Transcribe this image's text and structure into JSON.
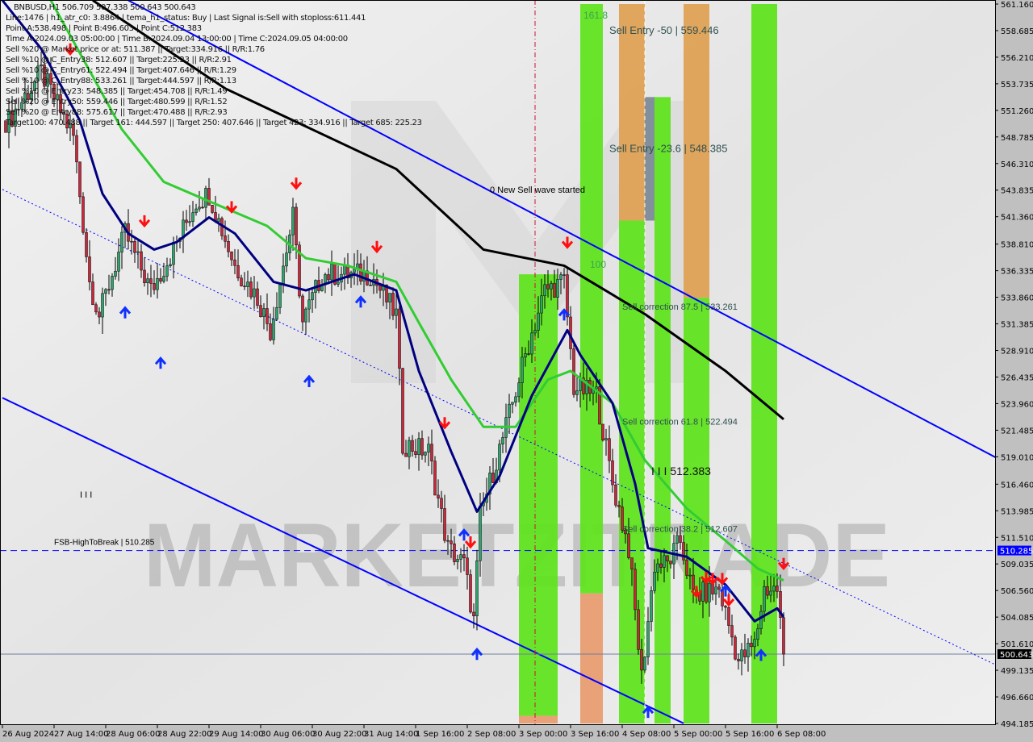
{
  "header": {
    "title": "BNBUSD,H1  506.709 507.338 500.643 500.643",
    "lines": [
      "Line:1476 | h1_atr_c0: 3.8864 | tema_h1_status: Buy | Last Signal is:Sell with stoploss:611.441",
      "Point A:538.498 | Point B:496.603 | Point C:512.383",
      "Time A:2024.09.03 05:00:00 | Time B:2024.09.04 13:00:00 | Time C:2024.09.05 04:00:00",
      "Sell %20 @ Market price or at: 511.387 || Target:334.916 || R/R:1.76",
      "Sell %10 @ C_Entry38: 512.607 || Target:225.23 || R/R:2.91",
      "Sell %10 @ C_Entry61: 522.494 || Target:407.646 || R/R:1.29",
      "Sell %10 @ C_Entry88: 533.261 || Target:444.597 || R/R:1.13",
      "Sell %10 @ Entry23: 548.385 || Target:454.708 || R/R:1.49",
      "Sell %20 @ Entry50: 559.446 || Target:480.599 || R/R:1.52",
      "Sell %20 @ Entry88: 575.617 || Target:470.488 || R/R:2.93",
      "Target100: 470.488 || Target 161: 444.597 || Target 250: 407.646 || Target 423: 334.916 || Target 685: 225.23"
    ]
  },
  "watermark": "MARKETZITRADE",
  "chart_data": {
    "type": "candlestick",
    "symbol": "BNBUSD",
    "timeframe": "H1",
    "ylim": [
      494.185,
      561.16
    ],
    "y_ticks": [
      "561.160",
      "558.685",
      "556.210",
      "553.735",
      "551.260",
      "548.785",
      "546.310",
      "543.835",
      "541.360",
      "538.810",
      "536.335",
      "533.860",
      "531.385",
      "528.910",
      "526.435",
      "523.960",
      "521.485",
      "519.010",
      "516.460",
      "513.985",
      "511.510",
      "509.035",
      "506.560",
      "504.085",
      "501.610",
      "499.135",
      "496.660",
      "494.185"
    ],
    "x_ticks": [
      {
        "label": "26 Aug 2024",
        "t": "2024-08-26 00:00"
      },
      {
        "label": "27 Aug 14:00",
        "t": "2024-08-27 14:00"
      },
      {
        "label": "28 Aug 06:00",
        "t": "2024-08-28 06:00"
      },
      {
        "label": "28 Aug 22:00",
        "t": "2024-08-28 22:00"
      },
      {
        "label": "29 Aug 14:00",
        "t": "2024-08-29 14:00"
      },
      {
        "label": "30 Aug 06:00",
        "t": "2024-08-30 06:00"
      },
      {
        "label": "30 Aug 22:00",
        "t": "2024-08-30 22:00"
      },
      {
        "label": "31 Aug 14:00",
        "t": "2024-08-31 14:00"
      },
      {
        "label": "1 Sep 16:00",
        "t": "2024-09-01 16:00"
      },
      {
        "label": "2 Sep 08:00",
        "t": "2024-09-02 08:00"
      },
      {
        "label": "3 Sep 00:00",
        "t": "2024-09-03 00:00"
      },
      {
        "label": "3 Sep 16:00",
        "t": "2024-09-03 16:00"
      },
      {
        "label": "4 Sep 08:00",
        "t": "2024-09-04 08:00"
      },
      {
        "label": "5 Sep 00:00",
        "t": "2024-09-05 00:00"
      },
      {
        "label": "5 Sep 16:00",
        "t": "2024-09-05 16:00"
      },
      {
        "label": "6 Sep 08:00",
        "t": "2024-09-06 08:00"
      }
    ],
    "close_path": [
      [
        "2024-08-26 02:00",
        550.3
      ],
      [
        "2024-08-26 12:00",
        554.8
      ],
      [
        "2024-08-27 20:00",
        548.8
      ],
      [
        "2024-08-28 01:00",
        535.3
      ],
      [
        "2024-08-28 04:00",
        532.2
      ],
      [
        "2024-08-28 12:00",
        539.8
      ],
      [
        "2024-08-28 20:00",
        534.5
      ],
      [
        "2024-08-29 03:00",
        538.3
      ],
      [
        "2024-08-29 10:00",
        542.8
      ],
      [
        "2024-08-29 14:00",
        543.5
      ],
      [
        "2024-08-29 22:00",
        536.8
      ],
      [
        "2024-08-30 05:00",
        533.8
      ],
      [
        "2024-08-30 09:00",
        530.8
      ],
      [
        "2024-08-30 16:00",
        541.3
      ],
      [
        "2024-08-30 19:00",
        531.5
      ],
      [
        "2024-08-31 01:00",
        536.0
      ],
      [
        "2024-08-31 09:00",
        536.0
      ],
      [
        "2024-08-31 16:00",
        536.0
      ],
      [
        "2024-09-01 00:00",
        532.2
      ],
      [
        "2024-09-01 02:00",
        520.2
      ],
      [
        "2024-09-01 20:00",
        519.5
      ],
      [
        "2024-09-02 02:00",
        510.5
      ],
      [
        "2024-09-02 07:00",
        509.0
      ],
      [
        "2024-09-02 10:00",
        503.7
      ],
      [
        "2024-09-02 12:00",
        513.5
      ],
      [
        "2024-09-02 20:00",
        521.8
      ],
      [
        "2024-09-03 02:00",
        528.5
      ],
      [
        "2024-09-03 08:00",
        534.5
      ],
      [
        "2024-09-03 14:00",
        535.3
      ],
      [
        "2024-09-03 17:00",
        525.5
      ],
      [
        "2024-09-04 00:00",
        524.8
      ],
      [
        "2024-09-04 05:00",
        516.5
      ],
      [
        "2024-09-04 10:00",
        510.5
      ],
      [
        "2024-09-04 14:00",
        498.5
      ],
      [
        "2024-09-04 18:00",
        509.0
      ],
      [
        "2024-09-04 22:00",
        509.0
      ],
      [
        "2024-09-05 02:00",
        511.2
      ],
      [
        "2024-09-05 06:00",
        506.0
      ],
      [
        "2024-09-05 14:00",
        506.7
      ],
      [
        "2024-09-05 20:00",
        500.0
      ],
      [
        "2024-09-06 01:00",
        501.5
      ],
      [
        "2024-09-06 04:00",
        506.7
      ],
      [
        "2024-09-06 08:00",
        506.7
      ],
      [
        "2024-09-06 10:00",
        500.643
      ]
    ],
    "ma_lines": [
      {
        "color": "#000000",
        "points": [
          [
            "2024-08-28 02:00",
            561.5
          ],
          [
            "2024-08-29 19:00",
            553.3
          ],
          [
            "2024-09-01 00:00",
            545.8
          ],
          [
            "2024-09-02 13:00",
            538.3
          ],
          [
            "2024-09-03 14:00",
            536.8
          ],
          [
            "2024-09-04 15:00",
            532.3
          ],
          [
            "2024-09-05 16:00",
            527.0
          ],
          [
            "2024-09-06 10:00",
            522.5
          ]
        ]
      },
      {
        "color": "#33cc33",
        "points": [
          [
            "2024-08-26 15:00",
            561.5
          ],
          [
            "2024-08-28 11:00",
            549.5
          ],
          [
            "2024-08-29 00:00",
            544.6
          ],
          [
            "2024-08-29 14:00",
            542.8
          ],
          [
            "2024-08-30 08:00",
            540.5
          ],
          [
            "2024-08-30 20:00",
            537.5
          ],
          [
            "2024-08-31 09:00",
            536.8
          ],
          [
            "2024-09-01 00:00",
            535.3
          ],
          [
            "2024-09-01 17:00",
            531.5
          ],
          [
            "2024-09-02 03:00",
            526.2
          ],
          [
            "2024-09-02 13:00",
            521.8
          ],
          [
            "2024-09-02 23:00",
            521.8
          ],
          [
            "2024-09-03 09:00",
            526.2
          ],
          [
            "2024-09-03 16:00",
            527.0
          ],
          [
            "2024-09-04 05:00",
            524.0
          ],
          [
            "2024-09-04 15:00",
            518.7
          ],
          [
            "2024-09-05 04:00",
            514.2
          ],
          [
            "2024-09-05 16:00",
            511.2
          ],
          [
            "2024-09-06 02:00",
            508.6
          ],
          [
            "2024-09-06 10:00",
            507.5
          ]
        ]
      },
      {
        "color": "#000080",
        "points": [
          [
            "2024-08-26 00:00",
            561.5
          ],
          [
            "2024-08-26 12:00",
            557.0
          ],
          [
            "2024-08-27 22:00",
            550.3
          ],
          [
            "2024-08-28 05:00",
            543.5
          ],
          [
            "2024-08-28 13:00",
            539.8
          ],
          [
            "2024-08-28 21:00",
            538.3
          ],
          [
            "2024-08-29 04:00",
            539.0
          ],
          [
            "2024-08-29 14:00",
            541.3
          ],
          [
            "2024-08-29 22:00",
            539.8
          ],
          [
            "2024-08-30 10:00",
            535.3
          ],
          [
            "2024-08-30 20:00",
            534.5
          ],
          [
            "2024-08-31 11:00",
            536.0
          ],
          [
            "2024-09-01 00:00",
            534.5
          ],
          [
            "2024-09-01 17:00",
            527.0
          ],
          [
            "2024-09-02 03:00",
            519.5
          ],
          [
            "2024-09-02 11:00",
            513.9
          ],
          [
            "2024-09-02 18:00",
            517.2
          ],
          [
            "2024-09-03 04:00",
            524.7
          ],
          [
            "2024-09-03 15:00",
            530.8
          ],
          [
            "2024-09-03 19:00",
            528.5
          ],
          [
            "2024-09-04 05:00",
            524.0
          ],
          [
            "2024-09-04 12:00",
            516.5
          ],
          [
            "2024-09-04 16:00",
            510.5
          ],
          [
            "2024-09-05 04:00",
            509.7
          ],
          [
            "2024-09-05 16:00",
            507.1
          ],
          [
            "2024-09-06 01:00",
            503.7
          ],
          [
            "2024-09-06 08:00",
            504.9
          ],
          [
            "2024-09-06 10:00",
            504.1
          ]
        ]
      }
    ],
    "trend_lines": [
      {
        "style": "solid",
        "color": "#0000ff",
        "from": [
          "2024-08-28 13:00",
          561.5
        ],
        "to": [
          "2024-09-09 04:00",
          518.9
        ]
      },
      {
        "style": "solid",
        "color": "#0000ff",
        "from": [
          "2024-08-26 00:00",
          524.5
        ],
        "to": [
          "2024-09-05 03:00",
          494.2
        ]
      },
      {
        "style": "dotted",
        "color": "#0000ff",
        "from": [
          "2024-08-26 00:00",
          543.9
        ],
        "to": [
          "2024-09-09 04:00",
          499.6
        ]
      }
    ],
    "zones": [
      {
        "from": "2024-09-03 00:00",
        "to": "2024-09-03 12:00",
        "segments": [
          {
            "color": "#5ce41a",
            "top": 536.0,
            "bottom": 494.9
          },
          {
            "color": "#e89a6c",
            "top": 494.9,
            "bottom": 494.185
          }
        ]
      },
      {
        "from": "2024-09-03 19:00",
        "to": "2024-09-04 02:00",
        "segments": [
          {
            "color": "#5ce41a",
            "top": 561.16,
            "bottom": 506.3
          },
          {
            "color": "#e89a6c",
            "top": 506.3,
            "bottom": 494.185
          }
        ]
      },
      {
        "from": "2024-09-04 07:00",
        "to": "2024-09-04 15:00",
        "segments": [
          {
            "color": "#e0a050",
            "top": 561.16,
            "bottom": 541.0
          },
          {
            "color": "#5ce41a",
            "top": 541.0,
            "bottom": 494.185
          }
        ]
      },
      {
        "from": "2024-09-04 15:00",
        "to": "2024-09-04 18:00",
        "segments": [
          {
            "color": "#7a8896",
            "top": 552.5,
            "bottom": 541.0
          }
        ]
      },
      {
        "from": "2024-09-04 18:00",
        "to": "2024-09-04 23:00",
        "segments": [
          {
            "color": "#5ce41a",
            "top": 552.5,
            "bottom": 494.185
          }
        ]
      },
      {
        "from": "2024-09-05 03:00",
        "to": "2024-09-05 11:00",
        "segments": [
          {
            "color": "#e0a050",
            "top": 561.16,
            "bottom": 533.8
          },
          {
            "color": "#5ce41a",
            "top": 533.8,
            "bottom": 494.185
          }
        ]
      },
      {
        "from": "2024-09-05 24:00",
        "to": "2024-09-06 08:00",
        "segments": [
          {
            "color": "#5ce41a",
            "top": 561.16,
            "bottom": 494.185
          }
        ]
      }
    ],
    "horizontal_lines": [
      {
        "price": 510.285,
        "color": "#0000ff",
        "style": "dashed",
        "label": "510.285",
        "badge_bg": "#0000ff"
      },
      {
        "price": 500.643,
        "color": "#7080a0",
        "style": "solid",
        "label": "500.643",
        "badge_bg": "#000000"
      }
    ],
    "vertical_lines": [
      {
        "t": "2024-09-03 05:00",
        "color": "#cc1133",
        "style": "dashdot"
      },
      {
        "t": "2024-09-04 15:00",
        "color": "#ffffff",
        "style": "dashed"
      }
    ],
    "sell_signals": [
      [
        "2024-08-27 19:00",
        556.9
      ],
      [
        "2024-08-28 18:00",
        540.9
      ],
      [
        "2024-08-29 21:00",
        542.2
      ],
      [
        "2024-08-30 17:00",
        544.4
      ],
      [
        "2024-08-31 18:00",
        538.5
      ],
      [
        "2024-09-02 01:00",
        522.1
      ],
      [
        "2024-09-02 09:00",
        511.0
      ],
      [
        "2024-09-03 15:00",
        538.9
      ],
      [
        "2024-09-05 07:00",
        506.4
      ],
      [
        "2024-09-05 10:00",
        507.7
      ],
      [
        "2024-09-05 12:00",
        507.6
      ],
      [
        "2024-09-05 15:00",
        507.6
      ],
      [
        "2024-09-05 17:00",
        505.6
      ],
      [
        "2024-09-06 10:00",
        509.0
      ]
    ],
    "buy_signals": [
      [
        "2024-08-28 12:00",
        532.5
      ],
      [
        "2024-08-28 23:00",
        527.8
      ],
      [
        "2024-08-30 21:00",
        526.1
      ],
      [
        "2024-08-31 13:00",
        533.5
      ],
      [
        "2024-09-02 07:00",
        511.8
      ],
      [
        "2024-09-02 11:00",
        500.7
      ],
      [
        "2024-09-03 14:00",
        532.3
      ],
      [
        "2024-09-04 16:00",
        495.3
      ],
      [
        "2024-09-05 16:00",
        506.6
      ],
      [
        "2024-09-06 03:00",
        500.6
      ]
    ],
    "annotations": [
      {
        "text": "0 New Sell wave started",
        "t": "2024-09-02 15:00",
        "price": 543.6,
        "color": "#000000",
        "size": 11
      },
      {
        "text": "161.8",
        "t": "2024-09-03 20:00",
        "price": 559.8,
        "color": "#3aa34a",
        "size": 12
      },
      {
        "text": "Sell Entry -50 | 559.446",
        "t": "2024-09-04 04:00",
        "price": 558.4,
        "color": "#2f4f4f",
        "size": 13
      },
      {
        "text": "Sell Entry -23.6 | 548.385",
        "t": "2024-09-04 04:00",
        "price": 547.4,
        "color": "#2f4f4f",
        "size": 13
      },
      {
        "text": "100",
        "t": "2024-09-03 22:00",
        "price": 536.6,
        "color": "#3aa34a",
        "size": 12
      },
      {
        "text": "Sell correction 87.5 | 533.261",
        "t": "2024-09-04 08:00",
        "price": 532.7,
        "color": "#2f4f4f",
        "size": 11
      },
      {
        "text": "Sell correction 61.8 | 522.494",
        "t": "2024-09-04 08:00",
        "price": 522.0,
        "color": "#2f4f4f",
        "size": 11
      },
      {
        "text": "I I I 512.383",
        "t": "2024-09-04 17:00",
        "price": 517.3,
        "color": "#111111",
        "size": 14
      },
      {
        "text": "Sell correction 38.2 | 512.607",
        "t": "2024-09-04 08:00",
        "price": 512.0,
        "color": "#2f4f4f",
        "size": 11
      },
      {
        "text": "FSB-HighToBreak | 510.285",
        "t": "2024-08-26 16:00",
        "price": 510.8,
        "color": "#000000",
        "size": 10
      },
      {
        "text": "I I I",
        "t": "2024-08-27 22:00",
        "price": 515.2,
        "color": "#000000",
        "size": 11
      }
    ]
  }
}
